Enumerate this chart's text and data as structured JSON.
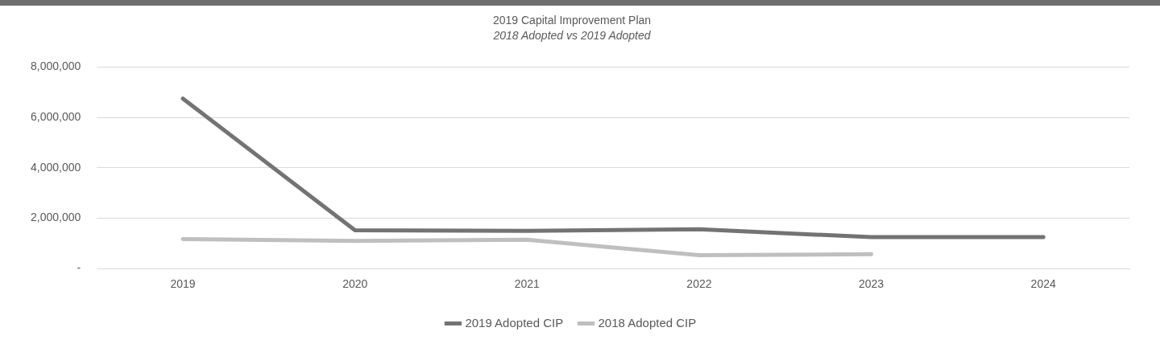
{
  "chart_data": {
    "type": "line",
    "title": "2019 Capital Improvement Plan",
    "subtitle": "2018 Adopted vs 2019 Adopted",
    "categories": [
      "2019",
      "2020",
      "2021",
      "2022",
      "2023",
      "2024"
    ],
    "series": [
      {
        "name": "2019 Adopted CIP",
        "color": "#737373",
        "values": [
          6750000,
          1520000,
          1500000,
          1560000,
          1250000,
          1250000
        ]
      },
      {
        "name": "2018 Adopted CIP",
        "color": "#bfbfbf",
        "values": [
          1170000,
          1100000,
          1150000,
          530000,
          570000,
          null
        ]
      }
    ],
    "ylim": [
      0,
      8000000
    ],
    "yticks": [
      {
        "value": 0,
        "label": "-"
      },
      {
        "value": 2000000,
        "label": "2,000,000"
      },
      {
        "value": 4000000,
        "label": "4,000,000"
      },
      {
        "value": 6000000,
        "label": "6,000,000"
      },
      {
        "value": 8000000,
        "label": "8,000,000"
      }
    ],
    "grid": "y",
    "legend": "bottom",
    "marker": "none",
    "line_style": "solid"
  }
}
